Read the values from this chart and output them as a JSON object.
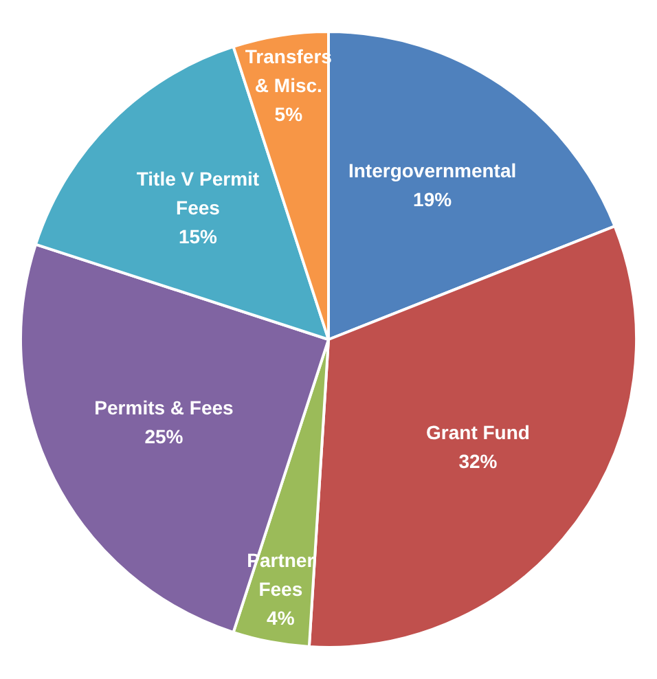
{
  "chart_data": {
    "type": "pie",
    "categories": [
      "Intergovernmental",
      "Grant Fund",
      "Partner Fees",
      "Permits & Fees",
      "Title V Permit Fees",
      "Transfers & Misc."
    ],
    "values": [
      19,
      32,
      4,
      25,
      15,
      5
    ],
    "colors": [
      "#4f81bd",
      "#c0504d",
      "#9bbb59",
      "#8064a2",
      "#4bacc6",
      "#f79646"
    ],
    "value_labels": [
      "19%",
      "32%",
      "4%",
      "25%",
      "15%",
      "5%"
    ],
    "legend": false
  }
}
